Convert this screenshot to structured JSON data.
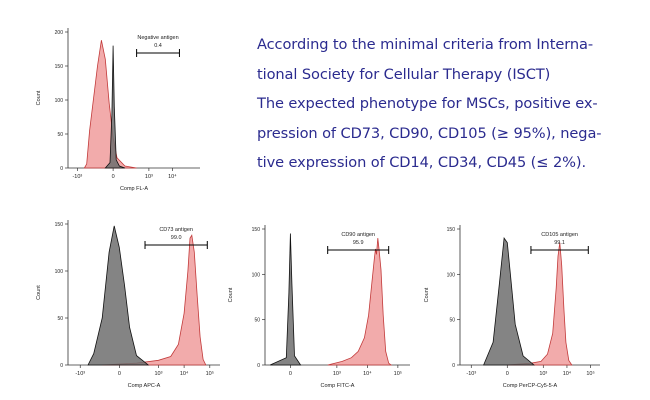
{
  "description": {
    "lines": [
      "According to the minimal criteria from Interna-",
      "tional Society for Cellular Therapy (ISCT)",
      "The expected phenotype for MSCs, positive ex-",
      "pression of CD73, CD90, CD105 (≥ 95%), nega-",
      "tive expression of CD14, CD34, CD45 (≤ 2%)."
    ]
  },
  "colors": {
    "text": "#2b2b8f",
    "sample_fill": "#ee8f8f",
    "sample_stroke": "#c23a3a",
    "control_fill": "#6f6f6f",
    "control_stroke": "#111111"
  },
  "chart_data": [
    {
      "type": "histogram",
      "title": "",
      "xlabel": "Comp FL-A",
      "ylabel": "Count",
      "x_scale": "biexponential",
      "x_tick_labels": [
        "-10³",
        "0",
        "10³",
        "10⁴"
      ],
      "y_tick_labels": [
        "0",
        "50",
        "100",
        "150",
        "200"
      ],
      "ylim": [
        0,
        200
      ],
      "gate": {
        "label": "Negative antigen",
        "value": "0.4",
        "x_range": [
          300,
          20000
        ]
      },
      "series": [
        {
          "role": "sample",
          "points": [
            [
              -500,
              0
            ],
            [
              -400,
              6
            ],
            [
              -300,
              55
            ],
            [
              -200,
              150
            ],
            [
              -150,
              188
            ],
            [
              -100,
              160
            ],
            [
              -50,
              95
            ],
            [
              0,
              45
            ],
            [
              50,
              15
            ],
            [
              150,
              3
            ],
            [
              300,
              0
            ]
          ]
        },
        {
          "role": "control",
          "points": [
            [
              -100,
              0
            ],
            [
              -40,
              8
            ],
            [
              -15,
              80
            ],
            [
              0,
              180
            ],
            [
              15,
              90
            ],
            [
              40,
              12
            ],
            [
              80,
              3
            ],
            [
              150,
              0
            ]
          ]
        }
      ]
    },
    {
      "type": "histogram",
      "title": "",
      "xlabel": "Comp APC-A",
      "ylabel": "Count",
      "x_scale": "biexponential",
      "x_tick_labels": [
        "-10³",
        "0",
        "10³",
        "10⁴",
        "10⁵"
      ],
      "y_tick_labels": [
        "0",
        "50",
        "100",
        "150"
      ],
      "ylim": [
        0,
        150
      ],
      "gate": {
        "label": "CD73 antigen",
        "value": "99.0",
        "x_range": [
          300,
          80000
        ]
      },
      "series": [
        {
          "role": "control",
          "points": [
            [
              -500,
              0
            ],
            [
              -300,
              12
            ],
            [
              -200,
              50
            ],
            [
              -120,
              120
            ],
            [
              -60,
              148
            ],
            [
              0,
              125
            ],
            [
              60,
              85
            ],
            [
              120,
              40
            ],
            [
              200,
              10
            ],
            [
              400,
              0
            ]
          ]
        },
        {
          "role": "sample",
          "points": [
            [
              -200,
              0
            ],
            [
              200,
              2
            ],
            [
              1000,
              5
            ],
            [
              3000,
              9
            ],
            [
              6000,
              22
            ],
            [
              10000,
              55
            ],
            [
              14000,
              100
            ],
            [
              17000,
              135
            ],
            [
              20000,
              138
            ],
            [
              25000,
              120
            ],
            [
              32000,
              75
            ],
            [
              42000,
              30
            ],
            [
              55000,
              6
            ],
            [
              70000,
              0
            ]
          ]
        }
      ]
    },
    {
      "type": "histogram",
      "title": "",
      "xlabel": "Comp FITC-A",
      "ylabel": "Count",
      "x_scale": "biexponential",
      "x_tick_labels": [
        "0",
        "10³",
        "10⁴",
        "10⁵"
      ],
      "y_tick_labels": [
        "0",
        "50",
        "100",
        "150"
      ],
      "ylim": [
        0,
        150
      ],
      "gate": {
        "label": "CD90 antigen",
        "value": "95.9",
        "x_range": [
          500,
          50000
        ]
      },
      "series": [
        {
          "role": "control",
          "points": [
            [
              -200,
              0
            ],
            [
              -40,
              8
            ],
            [
              -15,
              80
            ],
            [
              0,
              145
            ],
            [
              15,
              90
            ],
            [
              40,
              10
            ],
            [
              100,
              0
            ]
          ]
        },
        {
          "role": "sample",
          "points": [
            [
              500,
              0
            ],
            [
              1500,
              4
            ],
            [
              3000,
              8
            ],
            [
              5000,
              15
            ],
            [
              8000,
              30
            ],
            [
              11000,
              55
            ],
            [
              14000,
              90
            ],
            [
              17000,
              118
            ],
            [
              18500,
              128
            ],
            [
              20000,
              122
            ],
            [
              22000,
              140
            ],
            [
              24000,
              128
            ],
            [
              28000,
              105
            ],
            [
              33000,
              55
            ],
            [
              40000,
              15
            ],
            [
              50000,
              2
            ],
            [
              60000,
              0
            ]
          ]
        }
      ]
    },
    {
      "type": "histogram",
      "title": "",
      "xlabel": "Comp PerCP-Cy5-5-A",
      "ylabel": "Count",
      "x_scale": "biexponential",
      "x_tick_labels": [
        "-10³",
        "0",
        "10³",
        "10⁴",
        "10⁵"
      ],
      "y_tick_labels": [
        "0",
        "50",
        "100",
        "150"
      ],
      "ylim": [
        0,
        150
      ],
      "gate": {
        "label": "CD105 antigen",
        "value": "99.1",
        "x_range": [
          300,
          80000
        ]
      },
      "series": [
        {
          "role": "control",
          "points": [
            [
              -300,
              0
            ],
            [
              -180,
              25
            ],
            [
              -100,
              90
            ],
            [
              -40,
              140
            ],
            [
              0,
              135
            ],
            [
              40,
              100
            ],
            [
              100,
              45
            ],
            [
              200,
              10
            ],
            [
              400,
              0
            ]
          ]
        },
        {
          "role": "sample",
          "points": [
            [
              0,
              0
            ],
            [
              300,
              2
            ],
            [
              800,
              4
            ],
            [
              1500,
              12
            ],
            [
              2500,
              35
            ],
            [
              3500,
              85
            ],
            [
              4200,
              120
            ],
            [
              5000,
              135
            ],
            [
              6000,
              110
            ],
            [
              7500,
              60
            ],
            [
              9000,
              25
            ],
            [
              12000,
              5
            ],
            [
              16000,
              0
            ]
          ]
        }
      ]
    }
  ]
}
